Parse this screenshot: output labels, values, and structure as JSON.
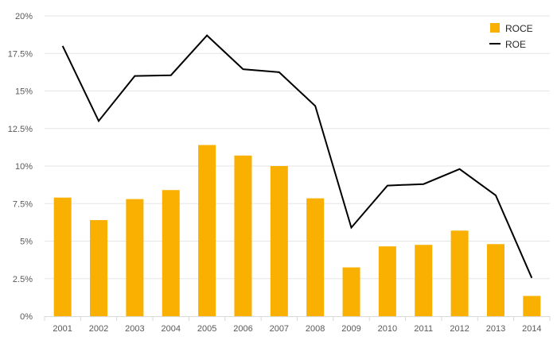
{
  "chart_data": {
    "type": "bar",
    "categories": [
      "2001",
      "2002",
      "2003",
      "2004",
      "2005",
      "2006",
      "2007",
      "2008",
      "2009",
      "2010",
      "2011",
      "2012",
      "2013",
      "2014"
    ],
    "series": [
      {
        "name": "ROCE",
        "kind": "bar",
        "color": "#F9B000",
        "values": [
          7.9,
          6.4,
          7.8,
          8.4,
          11.4,
          10.7,
          10.0,
          7.85,
          3.25,
          4.65,
          4.75,
          5.7,
          4.8,
          1.35
        ]
      },
      {
        "name": "ROE",
        "kind": "line",
        "color": "#000000",
        "values": [
          18.0,
          13.0,
          16.0,
          16.05,
          18.7,
          16.45,
          16.25,
          14.0,
          5.9,
          8.7,
          8.8,
          9.8,
          8.05,
          2.55
        ]
      }
    ],
    "yticks": [
      "0%",
      "2.5%",
      "5%",
      "7.5%",
      "10%",
      "12.5%",
      "15%",
      "17.5%",
      "20%"
    ],
    "ylim": [
      0,
      20
    ],
    "grid": true,
    "legend_position": "top-right",
    "title": "",
    "xlabel": "",
    "ylabel": ""
  }
}
